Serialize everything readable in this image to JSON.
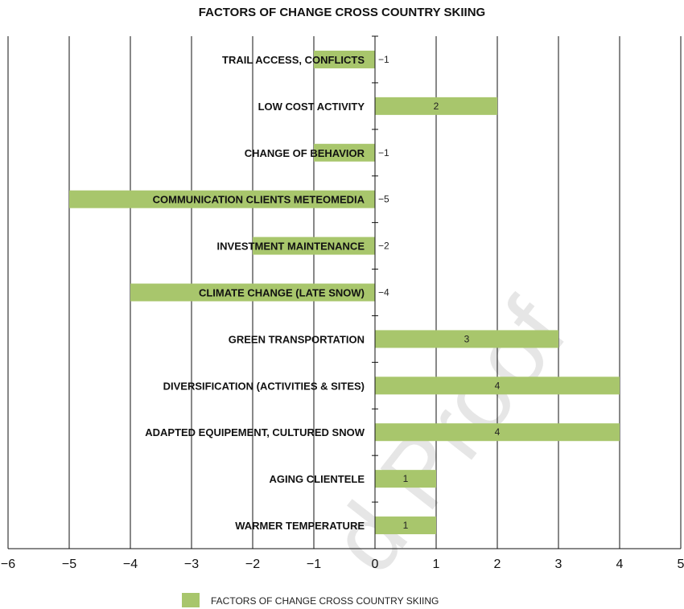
{
  "chart_data": {
    "type": "bar",
    "orientation": "horizontal",
    "title": "FACTORS OF CHANGE CROSS COUNTRY SKIING",
    "categories": [
      "TRAIL ACCESS, CONFLICTS",
      "LOW COST ACTIVITY",
      "CHANGE OF BEHAVIOR",
      "COMMUNICATION CLIENTS METEOMEDIA",
      "INVESTMENT MAINTENANCE",
      "CLIMATE CHANGE (LATE SNOW)",
      "GREEN TRANSPORTATION",
      "DIVERSIFICATION (ACTIVITIES & SITES)",
      "ADAPTED EQUIPEMENT, CULTURED SNOW",
      "AGING CLIENTELE",
      "WARMER TEMPERATURE"
    ],
    "series": [
      {
        "name": "FACTORS OF CHANGE CROSS COUNTRY SKIING",
        "values": [
          -1,
          2,
          -1,
          -5,
          -2,
          -4,
          3,
          4,
          4,
          1,
          1
        ],
        "labels": [
          "−1",
          "2",
          "−1",
          "−5",
          "−2",
          "−4",
          "3",
          "4",
          "4",
          "1",
          "1"
        ]
      }
    ],
    "xlim": [
      -6,
      5
    ],
    "xticks": [
      -6,
      -5,
      -4,
      -3,
      -2,
      -1,
      0,
      1,
      2,
      3,
      4,
      5
    ],
    "xtick_labels": [
      "−6",
      "−5",
      "−4",
      "−3",
      "−2",
      "−1",
      "0",
      "1",
      "2",
      "3",
      "4",
      "5"
    ],
    "xlabel": "",
    "ylabel": "",
    "grid": "vertical",
    "legend_position": "bottom",
    "colors": {
      "bar": "#a8c66c",
      "grid": "#111111"
    }
  },
  "watermark": "d Proof"
}
